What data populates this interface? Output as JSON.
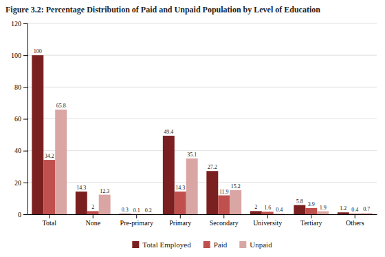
{
  "chart_data": {
    "type": "bar",
    "title": "Figure 3.2: Percentage Distribution of Paid and Unpaid Population by Level of Education",
    "categories": [
      "Total",
      "None",
      "Pre-primary",
      "Primary",
      "Secondary",
      "University",
      "Tertiary",
      "Others"
    ],
    "series": [
      {
        "name": "Total Employed",
        "color": "#7b2020",
        "values": [
          100,
          14.3,
          0.3,
          49.4,
          27.2,
          2,
          5.8,
          1.2
        ]
      },
      {
        "name": "Paid",
        "color": "#c0504d",
        "values": [
          34.2,
          2,
          0.1,
          14.3,
          11.9,
          1.6,
          3.9,
          0.4
        ]
      },
      {
        "name": "Unpaid",
        "color": "#d9a6a4",
        "values": [
          65.8,
          12.3,
          0.2,
          35.1,
          15.2,
          0.4,
          1.9,
          0.7
        ]
      }
    ],
    "ylim": [
      0,
      120
    ],
    "yticks": [
      0,
      20,
      40,
      60,
      80,
      100,
      120
    ],
    "grid": true,
    "data_labels": true,
    "legend": "bottom"
  }
}
